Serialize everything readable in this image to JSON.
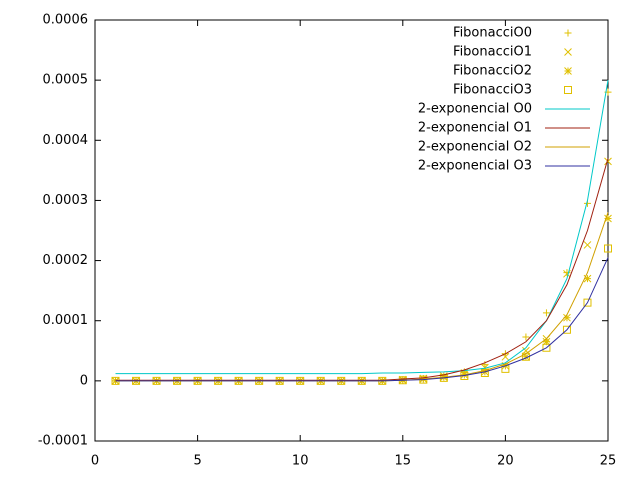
{
  "chart_data": {
    "type": "line",
    "x": [
      1,
      2,
      3,
      4,
      5,
      6,
      7,
      8,
      9,
      10,
      11,
      12,
      13,
      14,
      15,
      16,
      17,
      18,
      19,
      20,
      21,
      22,
      23,
      24,
      25
    ],
    "xlim": [
      0,
      25
    ],
    "xticks": [
      0,
      5,
      10,
      15,
      20,
      25
    ],
    "ylim": [
      -0.0001,
      0.0006
    ],
    "yticks": [
      -0.0001,
      0,
      0.0001,
      0.0002,
      0.0003,
      0.0004,
      0.0005,
      0.0006
    ],
    "legend": "top-right",
    "series": [
      {
        "name": "FibonacciO0",
        "style": "points",
        "marker": "plus",
        "color": "#e0c000",
        "values": [
          0,
          0,
          0,
          0,
          0,
          0,
          0,
          0,
          0,
          0,
          0,
          0,
          0,
          0,
          2e-06,
          4e-06,
          8e-06,
          1.5e-05,
          2.7e-05,
          4.5e-05,
          7.3e-05,
          0.000113,
          0.00018,
          0.000295,
          0.00048
        ]
      },
      {
        "name": "FibonacciO1",
        "style": "points",
        "marker": "cross",
        "color": "#e0c000",
        "values": [
          0,
          0,
          0,
          0,
          0,
          0,
          0,
          0,
          0,
          0,
          0,
          0,
          0,
          0,
          2e-06,
          4e-06,
          8e-06,
          1.3e-05,
          2.2e-05,
          4e-05,
          5e-05,
          7e-05,
          0.000178,
          0.000226,
          0.000365
        ]
      },
      {
        "name": "FibonacciO2",
        "style": "points",
        "marker": "star",
        "color": "#e0c000",
        "values": [
          0,
          0,
          0,
          0,
          0,
          0,
          0,
          0,
          0,
          0,
          0,
          0,
          0,
          0,
          1e-06,
          3e-06,
          6e-06,
          1e-05,
          1.5e-05,
          2.5e-05,
          4e-05,
          6.5e-05,
          0.000105,
          0.00017,
          0.00027
        ]
      },
      {
        "name": "FibonacciO3",
        "style": "points",
        "marker": "square",
        "color": "#e0c000",
        "values": [
          0,
          0,
          0,
          0,
          0,
          0,
          0,
          0,
          0,
          0,
          0,
          0,
          0,
          0,
          1e-06,
          2e-06,
          5e-06,
          8e-06,
          1.3e-05,
          2e-05,
          4e-05,
          5.5e-05,
          8.5e-05,
          0.00013,
          0.00022
        ]
      },
      {
        "name": "2-exponencial O0",
        "style": "line",
        "color": "#00c8c8",
        "values": [
          1.2e-05,
          1.2e-05,
          1.2e-05,
          1.2e-05,
          1.2e-05,
          1.2e-05,
          1.2e-05,
          1.2e-05,
          1.2e-05,
          1.2e-05,
          1.2e-05,
          1.2e-05,
          1.2e-05,
          1.3e-05,
          1.3e-05,
          1.4e-05,
          1.5e-05,
          1.7e-05,
          2.1e-05,
          3e-05,
          5.5e-05,
          0.0001,
          0.00017,
          0.0003,
          0.0005
        ]
      },
      {
        "name": "2-exponencial O1",
        "style": "line",
        "color": "#a02010",
        "values": [
          1e-06,
          1e-06,
          1e-06,
          1e-06,
          1e-06,
          1e-06,
          1e-06,
          1e-06,
          1e-06,
          1e-06,
          1e-06,
          1e-06,
          1e-06,
          1e-06,
          3e-06,
          5e-06,
          1e-05,
          1.8e-05,
          3e-05,
          4.5e-05,
          6.5e-05,
          0.0001,
          0.00016,
          0.00025,
          0.00037
        ]
      },
      {
        "name": "2-exponencial O2",
        "style": "line",
        "color": "#d0a000",
        "values": [
          0,
          0,
          0,
          0,
          0,
          0,
          0,
          0,
          0,
          0,
          0,
          0,
          0,
          0,
          1e-06,
          3e-06,
          6e-06,
          1e-05,
          1.7e-05,
          2.8e-05,
          4.5e-05,
          7e-05,
          0.00011,
          0.00018,
          0.00028
        ]
      },
      {
        "name": "2-exponencial O3",
        "style": "line",
        "color": "#3030a0",
        "values": [
          0,
          0,
          0,
          0,
          0,
          0,
          0,
          0,
          0,
          0,
          0,
          0,
          0,
          0,
          1e-06,
          2e-06,
          5e-06,
          9e-06,
          1.5e-05,
          2.5e-05,
          3.8e-05,
          5.5e-05,
          8.5e-05,
          0.00013,
          0.000205
        ]
      }
    ]
  }
}
